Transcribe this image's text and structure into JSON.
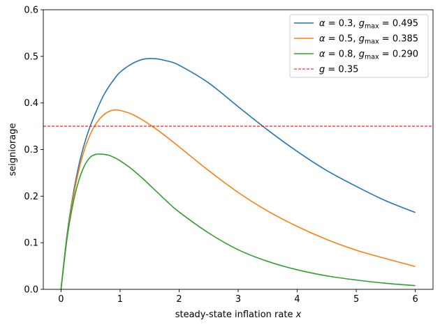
{
  "chart_data": {
    "type": "line",
    "xlabel_text": "steady-state inflation rate ",
    "xlabel_var": "x",
    "ylabel": "seigniorage",
    "xlim": [
      -0.3,
      6.3
    ],
    "ylim": [
      0,
      0.6
    ],
    "xticks": [
      0,
      1,
      2,
      3,
      4,
      5,
      6
    ],
    "yticks": [
      0.0,
      0.1,
      0.2,
      0.3,
      0.4,
      0.5,
      0.6
    ],
    "xtick_labels": [
      "0",
      "1",
      "2",
      "3",
      "4",
      "5",
      "6"
    ],
    "ytick_labels": [
      "0.0",
      "0.1",
      "0.2",
      "0.3",
      "0.4",
      "0.5",
      "0.6"
    ],
    "grid": false,
    "legend_position": "top-right",
    "x": [
      0,
      0.1,
      0.2,
      0.3,
      0.4,
      0.5,
      0.6,
      0.7,
      0.8,
      0.9,
      1.0,
      1.2,
      1.4,
      1.6,
      1.8,
      2.0,
      2.5,
      3.0,
      3.5,
      4.0,
      4.5,
      5.0,
      5.5,
      6.0
    ],
    "series": [
      {
        "label_alpha": "0.3",
        "label_gmax": "0.495",
        "color": "#1f77b4",
        "values": [
          0.0,
          0.115,
          0.2,
          0.265,
          0.314,
          0.352,
          0.383,
          0.411,
          0.433,
          0.451,
          0.466,
          0.484,
          0.494,
          0.495,
          0.49,
          0.481,
          0.443,
          0.392,
          0.342,
          0.296,
          0.255,
          0.221,
          0.19,
          0.165
        ]
      },
      {
        "label_alpha": "0.5",
        "label_gmax": "0.385",
        "color": "#ff7f0e",
        "values": [
          0.0,
          0.11,
          0.193,
          0.255,
          0.301,
          0.334,
          0.357,
          0.372,
          0.381,
          0.385,
          0.384,
          0.376,
          0.362,
          0.345,
          0.326,
          0.306,
          0.255,
          0.208,
          0.168,
          0.135,
          0.107,
          0.084,
          0.066,
          0.049
        ]
      },
      {
        "label_alpha": "0.8",
        "label_gmax": "0.290",
        "color": "#2ca02c",
        "values": [
          0.0,
          0.107,
          0.182,
          0.233,
          0.266,
          0.284,
          0.29,
          0.29,
          0.288,
          0.283,
          0.276,
          0.258,
          0.236,
          0.212,
          0.188,
          0.166,
          0.121,
          0.085,
          0.06,
          0.042,
          0.029,
          0.02,
          0.013,
          0.008
        ]
      }
    ],
    "reference_line": {
      "y": 0.35,
      "label_value": "0.35",
      "color": "#ff0000",
      "style": "dashed"
    }
  }
}
